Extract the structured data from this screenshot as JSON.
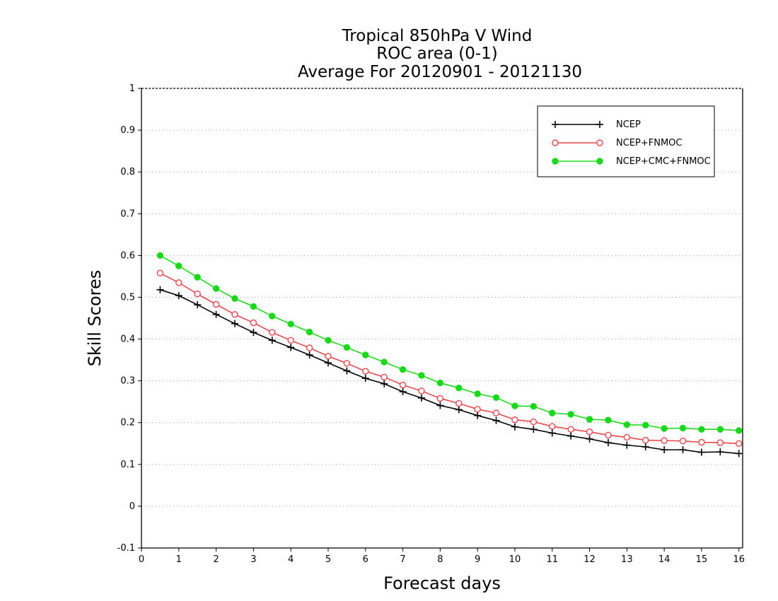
{
  "chart_data": {
    "type": "line",
    "title": [
      "Tropical 850hPa V Wind",
      "ROC area (0-1)",
      "Average For 20120901 - 20121130"
    ],
    "xlabel": "Forecast days",
    "ylabel": "Skill Scores",
    "xlim": [
      0,
      16.1
    ],
    "ylim": [
      -0.1,
      1
    ],
    "xticks": [
      "0",
      "1",
      "2",
      "3",
      "4",
      "5",
      "6",
      "7",
      "8",
      "9",
      "10",
      "11",
      "12",
      "13",
      "14",
      "15",
      "16"
    ],
    "yticks": [
      "-0.1",
      "0",
      "0.1",
      "0.2",
      "0.3",
      "0.4",
      "0.5",
      "0.6",
      "0.7",
      "0.8",
      "0.9",
      "1"
    ],
    "grid": "horizontal dotted",
    "legend_position": "top-right",
    "x": [
      0.5,
      1,
      1.5,
      2,
      2.5,
      3,
      3.5,
      4,
      4.5,
      5,
      5.5,
      6,
      6.5,
      7,
      7.5,
      8,
      8.5,
      9,
      9.5,
      10,
      10.5,
      11,
      11.5,
      12,
      12.5,
      13,
      13.5,
      14,
      14.5,
      15,
      15.5,
      16
    ],
    "series": [
      {
        "name": "NCEP",
        "color": "#000000",
        "marker": "plus",
        "values": [
          0.518,
          0.504,
          0.482,
          0.459,
          0.437,
          0.416,
          0.397,
          0.38,
          0.362,
          0.343,
          0.324,
          0.306,
          0.293,
          0.274,
          0.259,
          0.241,
          0.231,
          0.217,
          0.205,
          0.19,
          0.184,
          0.175,
          0.168,
          0.161,
          0.152,
          0.146,
          0.142,
          0.135,
          0.135,
          0.129,
          0.13,
          0.126
        ]
      },
      {
        "name": "NCEP+FNMOC",
        "color": "#e8474c",
        "marker": "open-circle",
        "values": [
          0.558,
          0.535,
          0.508,
          0.483,
          0.459,
          0.439,
          0.416,
          0.397,
          0.379,
          0.359,
          0.342,
          0.323,
          0.309,
          0.29,
          0.276,
          0.258,
          0.246,
          0.232,
          0.223,
          0.207,
          0.202,
          0.191,
          0.184,
          0.178,
          0.17,
          0.165,
          0.158,
          0.157,
          0.156,
          0.153,
          0.152,
          0.15
        ]
      },
      {
        "name": "NCEP+CMC+FNMOC",
        "color": "#1cd81c",
        "marker": "filled-circle",
        "values": [
          0.6,
          0.575,
          0.548,
          0.521,
          0.497,
          0.478,
          0.455,
          0.436,
          0.417,
          0.397,
          0.38,
          0.362,
          0.345,
          0.327,
          0.313,
          0.295,
          0.283,
          0.269,
          0.26,
          0.24,
          0.239,
          0.223,
          0.22,
          0.208,
          0.206,
          0.195,
          0.194,
          0.186,
          0.187,
          0.184,
          0.184,
          0.181
        ]
      }
    ]
  }
}
